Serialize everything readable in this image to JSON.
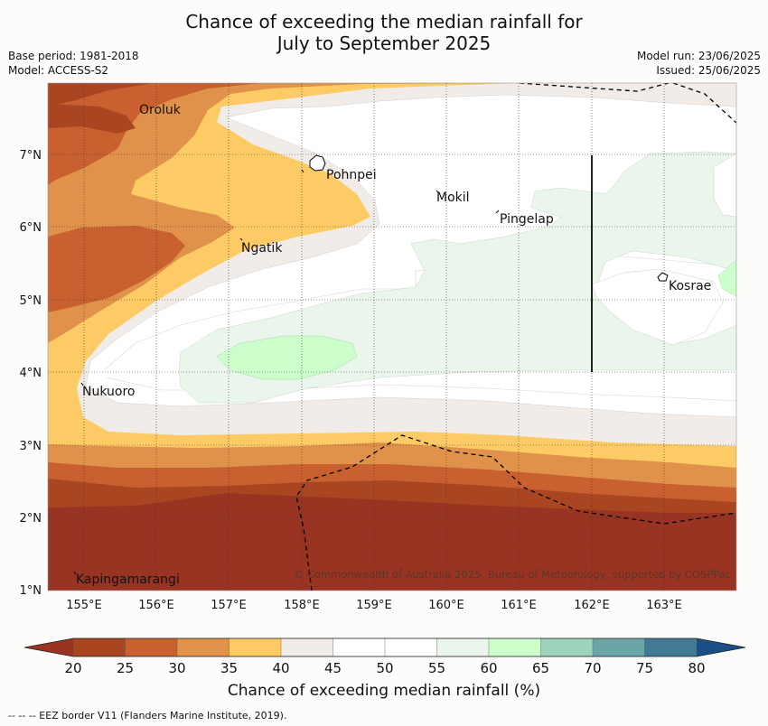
{
  "header": {
    "title_line1": "Chance of exceeding the median rainfall for",
    "title_line2": "July to September 2025",
    "base_period": "Base period: 1981-2018",
    "model": "Model: ACCESS-S2",
    "model_run": "Model run: 23/06/2025",
    "issued": "Issued: 25/06/2025"
  },
  "map": {
    "lon_ticks": [
      "155°E",
      "156°E",
      "157°E",
      "158°E",
      "159°E",
      "160°E",
      "161°E",
      "162°E",
      "163°E"
    ],
    "lat_ticks": [
      "7°N",
      "6°N",
      "5°N",
      "4°N",
      "3°N",
      "2°N",
      "1°N"
    ],
    "places": [
      {
        "name": "Oroluk"
      },
      {
        "name": "Pohnpei"
      },
      {
        "name": "Mokil"
      },
      {
        "name": "Pingelap"
      },
      {
        "name": "Ngatik"
      },
      {
        "name": "Kosrae"
      },
      {
        "name": "Nukuoro"
      },
      {
        "name": "Kapingamarangi"
      }
    ],
    "copyright": "© Commonwealth of Australia 2025, Bureau of Meteorology, supported by COSPPac"
  },
  "colorbar": {
    "ticks": [
      "20",
      "25",
      "30",
      "35",
      "40",
      "45",
      "50",
      "55",
      "60",
      "65",
      "70",
      "75",
      "80"
    ],
    "colors": [
      "#aa4522",
      "#c8602f",
      "#e0924a",
      "#fccb65",
      "#f2ece8",
      "#fefffe",
      "#fefffe",
      "#eaf6ec",
      "#ccffcc",
      "#9dd2bd",
      "#6ca5a8",
      "#427a96"
    ],
    "under_color": "#993322",
    "over_color": "#1a4f86",
    "title": "Chance of exceeding median rainfall (%)"
  },
  "footnote": "--  --  -- EEZ border V11 (Flanders Marine Institute, 2019)."
}
